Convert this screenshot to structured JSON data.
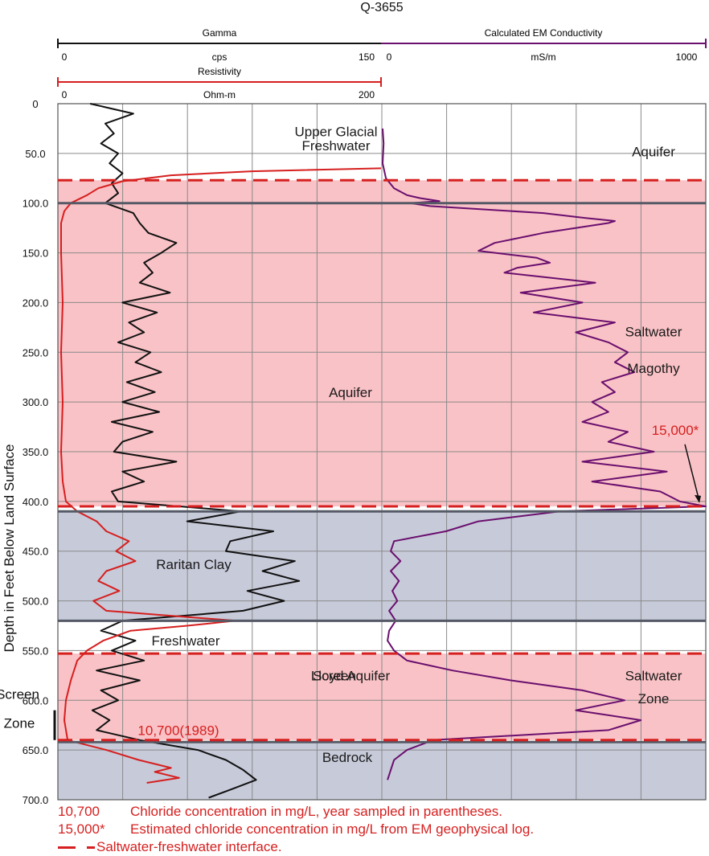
{
  "chart_data": {
    "type": "line",
    "title": "Q-3655",
    "ylabel": "Depth in Feet Below Land Surface",
    "ylim": [
      0,
      700
    ],
    "y_ticks": [
      "0",
      "50.0",
      "100.0",
      "150.0",
      "200.0",
      "250.0",
      "300.0",
      "350.0",
      "400.0",
      "450.0",
      "500.0",
      "550.0",
      "600.0",
      "650.0",
      "700.0"
    ],
    "grid": true,
    "tracks": [
      {
        "name": "Gamma",
        "unit": "cps",
        "min_label": "0",
        "max_label": "150",
        "range": [
          0,
          150
        ],
        "color": "#111111",
        "track": "left",
        "depth": [
          0,
          10,
          20,
          30,
          40,
          50,
          60,
          70,
          80,
          90,
          100,
          110,
          120,
          130,
          140,
          150,
          160,
          170,
          180,
          190,
          200,
          210,
          220,
          230,
          240,
          250,
          260,
          270,
          280,
          290,
          300,
          310,
          320,
          330,
          340,
          350,
          360,
          370,
          380,
          390,
          400,
          410,
          420,
          430,
          440,
          450,
          460,
          470,
          480,
          490,
          500,
          510,
          520,
          530,
          540,
          550,
          560,
          570,
          580,
          590,
          600,
          610,
          620,
          630,
          640,
          650,
          660,
          670,
          680,
          690,
          698
        ],
        "values": [
          15,
          35,
          22,
          26,
          20,
          28,
          24,
          30,
          25,
          28,
          22,
          35,
          38,
          42,
          55,
          48,
          40,
          44,
          38,
          52,
          30,
          46,
          33,
          40,
          28,
          43,
          36,
          48,
          32,
          45,
          30,
          47,
          25,
          44,
          30,
          26,
          55,
          30,
          40,
          25,
          28,
          85,
          60,
          100,
          80,
          78,
          110,
          95,
          112,
          88,
          105,
          86,
          30,
          20,
          36,
          25,
          40,
          18,
          38,
          20,
          28,
          16,
          24,
          18,
          38,
          65,
          78,
          86,
          92,
          80,
          70
        ]
      },
      {
        "name": "Resistivity",
        "unit": "Ohm-m",
        "min_label": "0",
        "max_label": "200",
        "range": [
          0,
          200
        ],
        "color": "#d61f1f",
        "track": "left",
        "depth": [
          65,
          68,
          72,
          78,
          85,
          92,
          100,
          108,
          120,
          150,
          200,
          250,
          300,
          350,
          380,
          400,
          410,
          420,
          430,
          440,
          450,
          460,
          470,
          480,
          490,
          500,
          510,
          515,
          520,
          525,
          530,
          540,
          550,
          560,
          580,
          600,
          620,
          640,
          650,
          660,
          668,
          672,
          678,
          683
        ],
        "values": [
          200,
          120,
          70,
          40,
          25,
          18,
          8,
          4,
          2,
          2,
          3,
          2,
          3,
          2,
          3,
          5,
          12,
          24,
          30,
          44,
          36,
          48,
          30,
          25,
          38,
          22,
          30,
          70,
          110,
          80,
          45,
          28,
          18,
          12,
          8,
          5,
          4,
          6,
          30,
          50,
          70,
          60,
          75,
          55
        ]
      },
      {
        "name": "Calculated EM Conductivity",
        "unit": "mS/m",
        "min_label": "0",
        "max_label": "1000",
        "range": [
          0,
          1000
        ],
        "color": "#6a0f6e",
        "track": "right",
        "depth": [
          25,
          40,
          60,
          75,
          85,
          92,
          95,
          98,
          100,
          103,
          106,
          110,
          115,
          118,
          120,
          125,
          130,
          140,
          148,
          155,
          160,
          165,
          170,
          180,
          190,
          200,
          210,
          220,
          230,
          240,
          250,
          260,
          270,
          280,
          290,
          300,
          310,
          320,
          330,
          340,
          350,
          360,
          370,
          380,
          390,
          400,
          405,
          410,
          420,
          430,
          440,
          450,
          460,
          470,
          480,
          490,
          500,
          510,
          520,
          530,
          540,
          550,
          560,
          570,
          580,
          590,
          600,
          610,
          620,
          630,
          640,
          650,
          660,
          670,
          680
        ],
        "values": [
          5,
          8,
          5,
          15,
          40,
          80,
          120,
          180,
          90,
          150,
          300,
          500,
          630,
          720,
          700,
          600,
          500,
          350,
          300,
          480,
          520,
          420,
          380,
          660,
          430,
          620,
          470,
          720,
          600,
          700,
          760,
          720,
          780,
          680,
          720,
          650,
          700,
          620,
          760,
          700,
          840,
          620,
          880,
          650,
          860,
          920,
          1000,
          550,
          300,
          200,
          40,
          30,
          60,
          30,
          55,
          35,
          50,
          25,
          45,
          25,
          20,
          40,
          80,
          220,
          400,
          620,
          750,
          600,
          800,
          700,
          160,
          80,
          40,
          30,
          20
        ]
      }
    ],
    "zones": [
      {
        "kind": "saltwater",
        "from": 77,
        "to": 405,
        "color": "#f9c2c6"
      },
      {
        "kind": "clay",
        "from": 410,
        "to": 520,
        "color": "#c7cad9"
      },
      {
        "kind": "saltwater",
        "from": 553,
        "to": 640,
        "color": "#f9c2c6"
      },
      {
        "kind": "clay",
        "from": 642,
        "to": 700,
        "color": "#c7cad9"
      }
    ],
    "interfaces_dashed": [
      77,
      405,
      553,
      640
    ],
    "boundaries_solid": [
      100,
      410,
      520,
      642
    ],
    "annotations": [
      {
        "text": "Upper Glacial",
        "depth": 28
      },
      {
        "text": "Aquifer",
        "depth": 48
      },
      {
        "text": "Freshwater",
        "depth": 42
      },
      {
        "text": "Magothy",
        "depth": 266
      },
      {
        "text": "Aquifer",
        "depth": 290
      },
      {
        "text": "Saltwater",
        "depth": 229
      },
      {
        "text": "Raritan Clay",
        "depth": 463
      },
      {
        "text": "Freshwater",
        "depth": 540
      },
      {
        "text": "Screen",
        "depth": 575
      },
      {
        "text": "Zone",
        "depth": 598
      },
      {
        "text": "Lloyd Aquifer",
        "depth": 575
      },
      {
        "text": "Saltwater",
        "depth": 575
      },
      {
        "text": "Bedrock",
        "depth": 657
      }
    ],
    "red_annotations": [
      {
        "text": "15,000*",
        "depth": 328
      },
      {
        "text": "10,700(1989)",
        "depth": 630
      }
    ],
    "screen_zone": {
      "label_1": "Screen",
      "label_2": "Zone",
      "from": 610,
      "to": 640
    }
  },
  "legend": {
    "row1_key": "10,700",
    "row1_text": "Chloride concentration in mg/L, year sampled in parentheses.",
    "row2_key": "15,000*",
    "row2_text": "Estimated chloride concentration in mg/L from EM geophysical log.",
    "row3_text": "Saltwater-freshwater interface."
  }
}
